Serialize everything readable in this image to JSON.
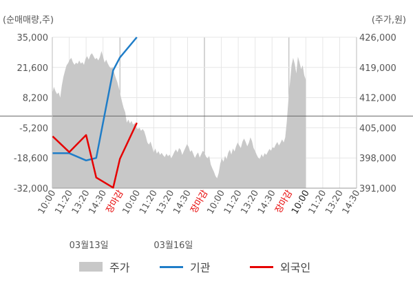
{
  "chart_data": {
    "type": "line",
    "left_axis_title": "(순매매량,주)",
    "right_axis_title": "(주가,원)",
    "left_ticks": [
      "35,000",
      "21,600",
      "8,200",
      "-5,200",
      "-18,600",
      "-32,000"
    ],
    "left_values": [
      35000,
      21600,
      8200,
      -5200,
      -18600,
      -32000
    ],
    "left_range": [
      -32000,
      35000
    ],
    "right_ticks": [
      "426,000",
      "419,000",
      "412,000",
      "405,000",
      "398,000",
      "391,000"
    ],
    "right_values": [
      426000,
      419000,
      412000,
      405000,
      398000,
      391000
    ],
    "right_range": [
      391000,
      426000
    ],
    "x_ticks": [
      {
        "label": "10:00",
        "style": "normal"
      },
      {
        "label": "11:20",
        "style": "normal"
      },
      {
        "label": "13:20",
        "style": "normal"
      },
      {
        "label": "14:30",
        "style": "normal"
      },
      {
        "label": "장마감",
        "style": "close"
      },
      {
        "label": "10:00",
        "style": "normal"
      },
      {
        "label": "11:20",
        "style": "normal"
      },
      {
        "label": "13:20",
        "style": "normal"
      },
      {
        "label": "14:30",
        "style": "normal"
      },
      {
        "label": "장마감",
        "style": "close"
      },
      {
        "label": "10:00",
        "style": "normal"
      },
      {
        "label": "11:20",
        "style": "normal"
      },
      {
        "label": "13:20",
        "style": "normal"
      },
      {
        "label": "14:30",
        "style": "normal"
      },
      {
        "label": "장마감",
        "style": "close"
      },
      {
        "label": "10:00",
        "style": "dark"
      },
      {
        "label": "11:20",
        "style": "normal"
      },
      {
        "label": "13:20",
        "style": "normal"
      },
      {
        "label": "14:30",
        "style": "normal"
      }
    ],
    "day_labels": [
      {
        "label": "03월13일",
        "tick_index": 2
      },
      {
        "label": "03월16일",
        "tick_index": 7
      }
    ],
    "session_dividers": [
      4,
      9,
      14
    ],
    "price_series": {
      "name": "주가",
      "color": "#c8c8c8",
      "x_start": 0,
      "x_end": 15,
      "values": [
        413000,
        414500,
        413500,
        412800,
        413200,
        412000,
        414800,
        416800,
        418200,
        419500,
        420000,
        420800,
        421200,
        420200,
        419600,
        420100,
        419800,
        420600,
        419900,
        420200,
        419600,
        421000,
        421600,
        420800,
        421900,
        422300,
        421600,
        420900,
        421200,
        420600,
        421400,
        422800,
        421500,
        420100,
        420800,
        419900,
        419200,
        418800,
        419100,
        417800,
        416600,
        415600,
        414200,
        412600,
        411000,
        409600,
        408600,
        406200,
        406900,
        406000,
        406600,
        405700,
        406100,
        405100,
        404700,
        405000,
        404300,
        404700,
        404200,
        403000,
        401600,
        401100,
        401800,
        400600,
        399300,
        400200,
        399000,
        399600,
        398700,
        399200,
        398600,
        398200,
        399000,
        398400,
        398800,
        397900,
        398600,
        399400,
        400000,
        399300,
        400300,
        399900,
        398700,
        399600,
        400400,
        401200,
        400600,
        399400,
        399800,
        398900,
        398000,
        398800,
        399300,
        398100,
        398900,
        399700,
        399200,
        398300,
        397900,
        398500,
        396500,
        395600,
        394800,
        393800,
        393300,
        394500,
        396700,
        397900,
        397100,
        398500,
        397700,
        399200,
        399900,
        398800,
        400200,
        399500,
        400700,
        401600,
        400900,
        400300,
        401800,
        402500,
        401700,
        400700,
        401500,
        402800,
        401900,
        400300,
        399600,
        398700,
        398000,
        397800,
        398900,
        398200,
        399100,
        398700,
        399400,
        400100,
        399700,
        400500,
        400300,
        401100,
        401700,
        400900,
        401500,
        402300,
        401600,
        402800,
        406500,
        411500,
        415500,
        419500,
        421200,
        419800,
        417600,
        421500,
        420200,
        418600,
        419500,
        417200,
        416100
      ]
    },
    "institution_series": {
      "name": "기관",
      "color": "#1f7dc8",
      "x": [
        0.02,
        1.0,
        2.0,
        2.6,
        3.6,
        4.0,
        5.0
      ],
      "values": [
        -16500,
        -16500,
        -19700,
        -18600,
        20300,
        26000,
        35000
      ]
    },
    "foreign_series": {
      "name": "외국인",
      "color": "#e60000",
      "x": [
        0.02,
        1.0,
        2.0,
        2.6,
        3.6,
        4.0,
        5.0
      ],
      "values": [
        -9000,
        -16000,
        -8400,
        -27300,
        -31800,
        -19000,
        -3000
      ]
    },
    "zero_line": 0
  },
  "legend": {
    "price_label": "주가",
    "institution_label": "기관",
    "foreign_label": "외국인"
  }
}
